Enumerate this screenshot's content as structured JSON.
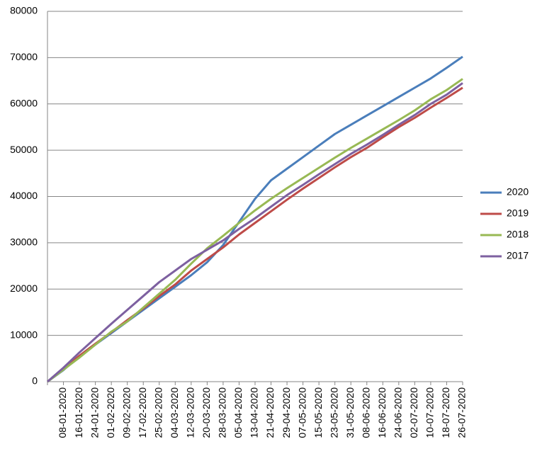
{
  "chart_data": {
    "type": "line",
    "categories": [
      null,
      "08-01-2020",
      "16-01-2020",
      "24-01-2020",
      "01-02-2020",
      "09-02-2020",
      "17-02-2020",
      "25-02-2020",
      "04-03-2020",
      "12-03-2020",
      "20-03-2020",
      "28-03-2020",
      "05-04-2020",
      "13-04-2020",
      "21-04-2020",
      "29-04-2020",
      "07-05-2020",
      "15-05-2020",
      "23-05-2020",
      "31-05-2020",
      "08-06-2020",
      "16-06-2020",
      "24-06-2020",
      "02-07-2020",
      "10-07-2020",
      "18-07-2020",
      "26-07-2020"
    ],
    "series": [
      {
        "name": "2020",
        "color": "#4a7ebb",
        "values": [
          0,
          2500,
          5500,
          8000,
          10500,
          13000,
          15500,
          18000,
          20500,
          23000,
          25800,
          29500,
          34500,
          39500,
          43500,
          46000,
          48500,
          51000,
          53500,
          55500,
          57500,
          59500,
          61500,
          63500,
          65500,
          67800,
          70200
        ]
      },
      {
        "name": "2019",
        "color": "#be4b48",
        "values": [
          0,
          2700,
          5600,
          8200,
          10700,
          13300,
          15800,
          18500,
          21000,
          24000,
          26500,
          29000,
          31800,
          34300,
          36800,
          39300,
          41700,
          44000,
          46300,
          48500,
          50500,
          52800,
          55000,
          57000,
          59200,
          61300,
          63500
        ]
      },
      {
        "name": "2018",
        "color": "#98b954",
        "values": [
          0,
          2600,
          5200,
          8000,
          10800,
          13000,
          16000,
          19000,
          22000,
          25500,
          28800,
          31500,
          34300,
          37000,
          39500,
          41800,
          44000,
          46200,
          48400,
          50500,
          52500,
          54500,
          56500,
          58600,
          61000,
          63000,
          65400
        ]
      },
      {
        "name": "2017",
        "color": "#7d60a0",
        "values": [
          0,
          3000,
          6300,
          9400,
          12500,
          15500,
          18500,
          21500,
          24000,
          26500,
          28500,
          30500,
          33000,
          35300,
          37800,
          40300,
          42500,
          44800,
          47000,
          49200,
          51200,
          53300,
          55500,
          57600,
          60000,
          62000,
          64500
        ]
      }
    ],
    "ylim": [
      0,
      80000
    ],
    "yticks": [
      0,
      10000,
      20000,
      30000,
      40000,
      50000,
      60000,
      70000,
      80000
    ],
    "grid": true,
    "legend": "right"
  }
}
